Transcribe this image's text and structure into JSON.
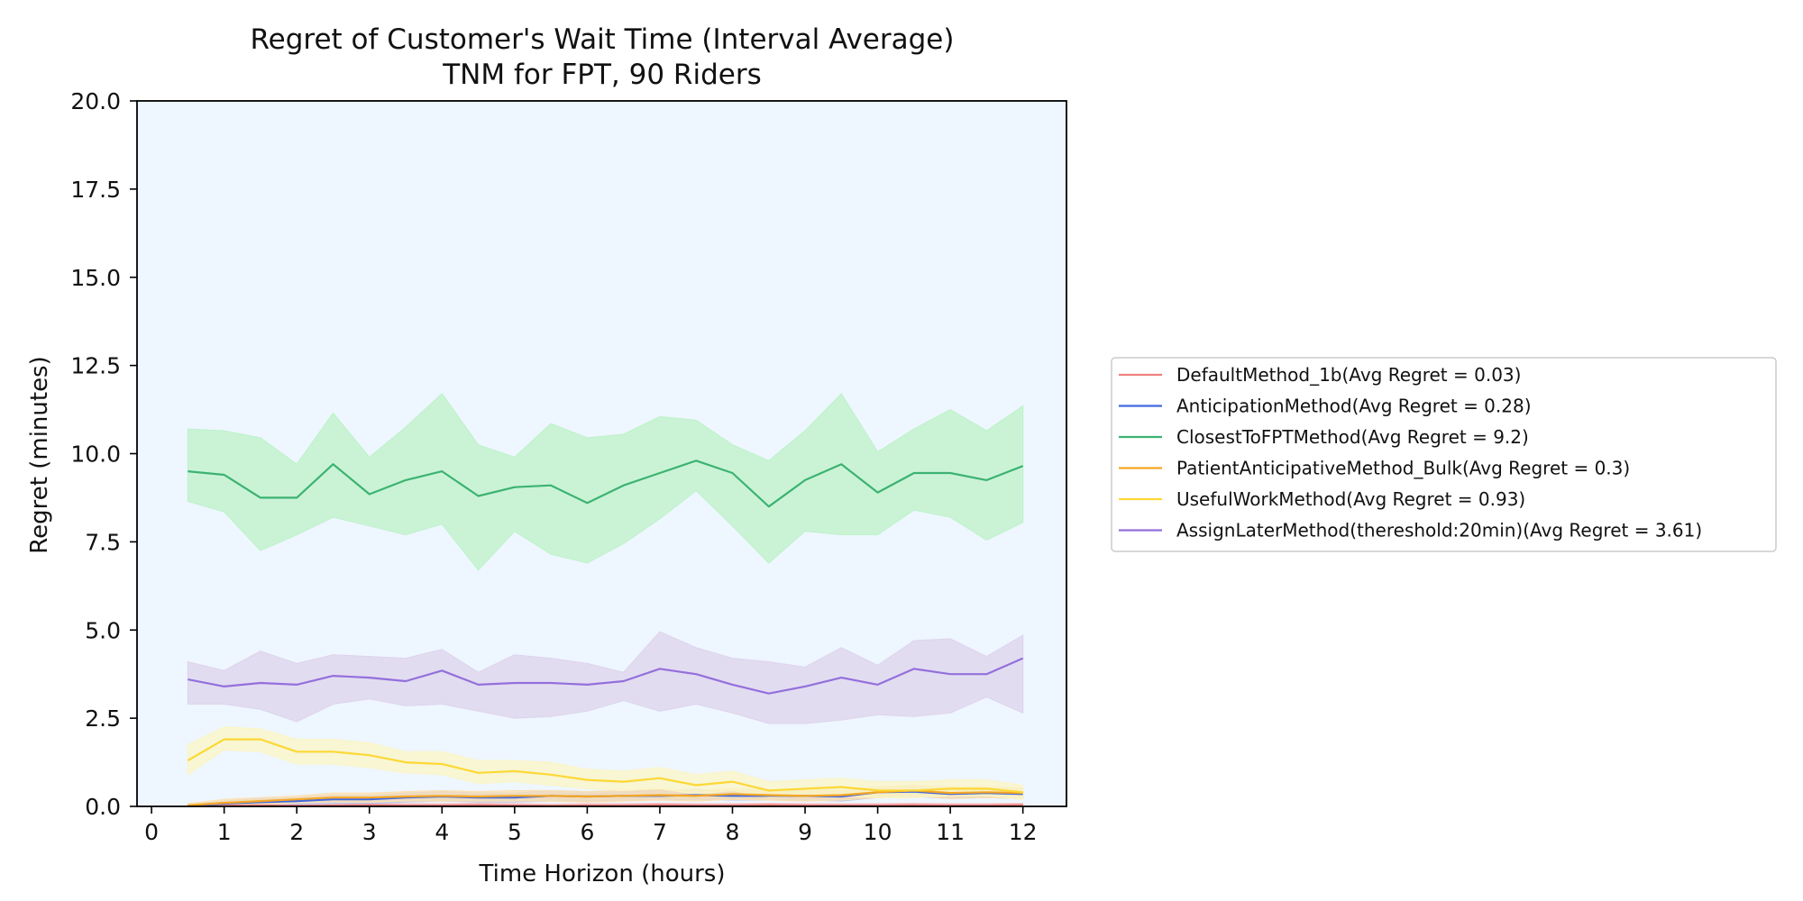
{
  "chart_data": {
    "type": "line",
    "title": "Regret of Customer's Wait Time (Interval Average)",
    "subtitle": "TNM for FPT, 90 Riders",
    "xlabel": "Time Horizon (hours)",
    "ylabel": "Regret (minutes)",
    "xlim": [
      -0.2,
      12.6
    ],
    "ylim": [
      0,
      20
    ],
    "xticks": [
      0,
      1,
      2,
      3,
      4,
      5,
      6,
      7,
      8,
      9,
      10,
      11,
      12
    ],
    "yticks": [
      0.0,
      2.5,
      5.0,
      7.5,
      10.0,
      12.5,
      15.0,
      17.5,
      20.0
    ],
    "ytick_labels": [
      "0.0",
      "2.5",
      "5.0",
      "7.5",
      "10.0",
      "12.5",
      "15.0",
      "17.5",
      "20.0"
    ],
    "grid": false,
    "legend_position": "right, outside plot",
    "plot_background": "#eef6ff",
    "x": [
      0.5,
      1,
      1.5,
      2,
      2.5,
      3,
      3.5,
      4,
      4.5,
      5,
      5.5,
      6,
      6.5,
      7,
      7.5,
      8,
      8.5,
      9,
      9.5,
      10,
      10.5,
      11,
      11.5,
      12
    ],
    "series": [
      {
        "name": "DefaultMethod_1b(Avg Regret = 0.03)",
        "color": "#f08080",
        "fill": "#f8c8c8",
        "values": [
          0.01,
          0.02,
          0.03,
          0.02,
          0.03,
          0.04,
          0.03,
          0.03,
          0.04,
          0.03,
          0.02,
          0.03,
          0.03,
          0.04,
          0.03,
          0.03,
          0.04,
          0.03,
          0.03,
          0.03,
          0.04,
          0.03,
          0.03,
          0.04
        ],
        "lower": [
          0.0,
          0.0,
          0.0,
          0.0,
          0.0,
          0.0,
          0.0,
          0.0,
          0.0,
          0.0,
          0.0,
          0.0,
          0.0,
          0.0,
          0.0,
          0.0,
          0.0,
          0.0,
          0.0,
          0.0,
          0.0,
          0.0,
          0.0,
          0.0
        ],
        "upper": [
          0.05,
          0.07,
          0.08,
          0.07,
          0.08,
          0.09,
          0.08,
          0.08,
          0.09,
          0.08,
          0.07,
          0.08,
          0.08,
          0.09,
          0.08,
          0.08,
          0.09,
          0.08,
          0.08,
          0.08,
          0.09,
          0.08,
          0.08,
          0.09
        ]
      },
      {
        "name": "AnticipationMethod(Avg Regret = 0.28)",
        "color": "#4169e1",
        "fill": "#b8c8f0",
        "values": [
          0.02,
          0.08,
          0.12,
          0.15,
          0.2,
          0.2,
          0.25,
          0.28,
          0.25,
          0.25,
          0.3,
          0.28,
          0.3,
          0.3,
          0.32,
          0.3,
          0.3,
          0.3,
          0.28,
          0.4,
          0.42,
          0.35,
          0.38,
          0.35
        ],
        "lower": [
          0.0,
          0.0,
          0.02,
          0.05,
          0.08,
          0.08,
          0.12,
          0.15,
          0.12,
          0.12,
          0.15,
          0.15,
          0.18,
          0.18,
          0.2,
          0.18,
          0.18,
          0.18,
          0.15,
          0.25,
          0.28,
          0.22,
          0.25,
          0.22
        ],
        "upper": [
          0.05,
          0.15,
          0.22,
          0.25,
          0.32,
          0.32,
          0.38,
          0.42,
          0.38,
          0.38,
          0.45,
          0.42,
          0.45,
          0.45,
          0.48,
          0.45,
          0.45,
          0.45,
          0.42,
          0.55,
          0.58,
          0.5,
          0.52,
          0.5
        ]
      },
      {
        "name": "ClosestToFPTMethod(Avg Regret = 9.2)",
        "color": "#3cb371",
        "fill": "#bdf2c8",
        "values": [
          9.5,
          9.4,
          8.75,
          8.75,
          9.7,
          8.85,
          9.25,
          9.5,
          8.8,
          9.05,
          9.1,
          8.6,
          9.1,
          9.45,
          9.8,
          9.45,
          8.5,
          9.25,
          9.7,
          8.9,
          9.45,
          9.45,
          9.25,
          9.65
        ],
        "lower": [
          8.65,
          8.35,
          7.25,
          7.7,
          8.2,
          7.95,
          7.7,
          8.0,
          6.7,
          7.8,
          7.15,
          6.9,
          7.45,
          8.15,
          8.95,
          7.95,
          6.9,
          7.8,
          7.7,
          7.7,
          8.4,
          8.2,
          7.55,
          8.05
        ],
        "upper": [
          10.7,
          10.65,
          10.45,
          9.7,
          11.15,
          9.9,
          10.75,
          11.7,
          10.25,
          9.9,
          10.85,
          10.45,
          10.55,
          11.05,
          10.95,
          10.25,
          9.8,
          10.65,
          11.7,
          10.05,
          10.7,
          11.25,
          10.65,
          11.35
        ]
      },
      {
        "name": "PatientAnticipativeMethod_Bulk(Avg Regret = 0.3)",
        "color": "#f5a623",
        "fill": "#fde0b0",
        "values": [
          0.03,
          0.1,
          0.15,
          0.2,
          0.25,
          0.25,
          0.28,
          0.3,
          0.28,
          0.3,
          0.3,
          0.28,
          0.3,
          0.32,
          0.3,
          0.35,
          0.32,
          0.3,
          0.32,
          0.4,
          0.45,
          0.38,
          0.4,
          0.38
        ],
        "lower": [
          0.0,
          0.02,
          0.05,
          0.1,
          0.12,
          0.12,
          0.15,
          0.15,
          0.15,
          0.15,
          0.15,
          0.12,
          0.15,
          0.18,
          0.15,
          0.2,
          0.18,
          0.15,
          0.18,
          0.25,
          0.3,
          0.22,
          0.25,
          0.22
        ],
        "upper": [
          0.08,
          0.2,
          0.25,
          0.3,
          0.38,
          0.38,
          0.42,
          0.45,
          0.42,
          0.45,
          0.45,
          0.42,
          0.45,
          0.48,
          0.45,
          0.5,
          0.48,
          0.45,
          0.48,
          0.55,
          0.6,
          0.55,
          0.55,
          0.52
        ]
      },
      {
        "name": "UsefulWorkMethod(Avg Regret = 0.93)",
        "color": "#fdd835",
        "fill": "#fbf5c4",
        "values": [
          1.3,
          1.9,
          1.9,
          1.55,
          1.55,
          1.45,
          1.25,
          1.2,
          0.95,
          1.0,
          0.9,
          0.75,
          0.7,
          0.8,
          0.6,
          0.7,
          0.45,
          0.5,
          0.55,
          0.45,
          0.45,
          0.5,
          0.5,
          0.4
        ],
        "lower": [
          0.9,
          1.6,
          1.55,
          1.2,
          1.2,
          1.1,
          0.95,
          0.9,
          0.65,
          0.7,
          0.6,
          0.5,
          0.45,
          0.5,
          0.35,
          0.45,
          0.25,
          0.3,
          0.3,
          0.25,
          0.25,
          0.3,
          0.3,
          0.2
        ],
        "upper": [
          1.75,
          2.25,
          2.2,
          1.9,
          1.9,
          1.8,
          1.55,
          1.55,
          1.3,
          1.3,
          1.25,
          1.05,
          1.0,
          1.1,
          0.9,
          1.0,
          0.7,
          0.75,
          0.8,
          0.7,
          0.7,
          0.75,
          0.75,
          0.6
        ]
      },
      {
        "name": "AssignLaterMethod(thereshold:20min)(Avg Regret = 3.61)",
        "color": "#9370db",
        "fill": "#ddd3ec",
        "values": [
          3.6,
          3.4,
          3.5,
          3.45,
          3.7,
          3.65,
          3.55,
          3.85,
          3.45,
          3.5,
          3.5,
          3.45,
          3.55,
          3.9,
          3.75,
          3.45,
          3.2,
          3.4,
          3.65,
          3.45,
          3.9,
          3.75,
          3.75,
          4.2
        ],
        "lower": [
          2.9,
          2.9,
          2.75,
          2.4,
          2.9,
          3.05,
          2.85,
          2.9,
          2.7,
          2.5,
          2.55,
          2.7,
          3.0,
          2.7,
          2.9,
          2.65,
          2.35,
          2.35,
          2.45,
          2.6,
          2.55,
          2.65,
          3.1,
          2.65
        ],
        "upper": [
          4.1,
          3.85,
          4.4,
          4.05,
          4.3,
          4.25,
          4.2,
          4.45,
          3.8,
          4.3,
          4.2,
          4.05,
          3.8,
          4.95,
          4.5,
          4.2,
          4.1,
          3.95,
          4.5,
          4.0,
          4.7,
          4.75,
          4.25,
          4.85
        ]
      }
    ]
  }
}
